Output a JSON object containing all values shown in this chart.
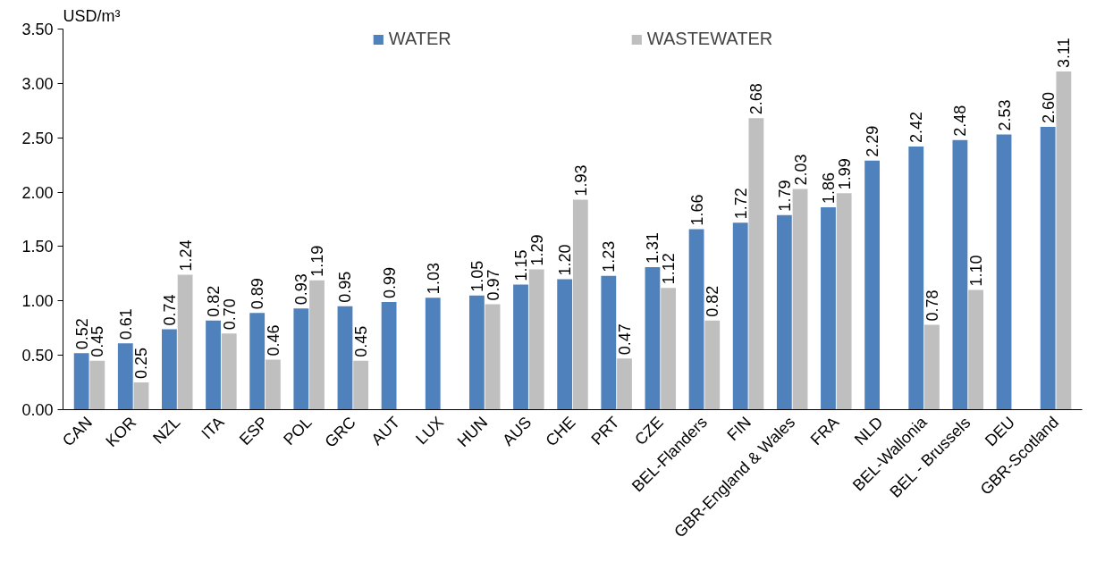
{
  "chart_data": {
    "type": "bar",
    "ylabel": "USD/m³",
    "categories": [
      "CAN",
      "KOR",
      "NZL",
      "ITA",
      "ESP",
      "POL",
      "GRC",
      "AUT",
      "LUX",
      "HUN",
      "AUS",
      "CHE",
      "PRT",
      "CZE",
      "BEL-Flanders",
      "FIN",
      "GBR-England & Wales",
      "FRA",
      "NLD",
      "BEL-Wallonia",
      "BEL - Brussels",
      "DEU",
      "GBR-Scotland"
    ],
    "series": [
      {
        "name": "WATER",
        "color": "#4f81bd",
        "values": [
          0.52,
          0.61,
          0.74,
          0.82,
          0.89,
          0.93,
          0.95,
          0.99,
          1.03,
          1.05,
          1.15,
          1.2,
          1.23,
          1.31,
          1.66,
          1.72,
          1.79,
          1.86,
          2.29,
          2.42,
          2.48,
          2.53,
          2.6
        ],
        "value_labels": [
          "0.52",
          "0.61",
          "0.74",
          "0.82",
          "0.89",
          "0.93",
          "0.95",
          "0.99",
          "1.03",
          "1.05",
          "1.15",
          "1.20",
          "1.23",
          "1.31",
          "1.66",
          "1.72",
          "1.79",
          "1.86",
          "2.29",
          "2.42",
          "2.48",
          "2.53",
          "2.60"
        ]
      },
      {
        "name": "WASTEWATER",
        "color": "#bfbfbf",
        "values": [
          0.45,
          0.25,
          1.24,
          0.7,
          0.46,
          1.19,
          0.45,
          null,
          null,
          0.97,
          1.29,
          1.93,
          0.47,
          1.12,
          0.82,
          2.68,
          2.03,
          1.99,
          null,
          0.78,
          1.1,
          null,
          3.11
        ],
        "value_labels": [
          "0.45",
          "0.25",
          "1.24",
          "0.70",
          "0.46",
          "1.19",
          "0.45",
          null,
          null,
          "0.97",
          "1.29",
          "1.93",
          "0.47",
          "1.12",
          "0.82",
          "2.68",
          "2.03",
          "1.99",
          null,
          "0.78",
          "1.10",
          null,
          "3.11"
        ]
      }
    ],
    "ylim": [
      0,
      3.5
    ],
    "yticks": [
      {
        "value": 0,
        "label": "0.00"
      },
      {
        "value": 0.5,
        "label": "0.50"
      },
      {
        "value": 1,
        "label": "1.00"
      },
      {
        "value": 1.5,
        "label": "1.50"
      },
      {
        "value": 2,
        "label": "2.00"
      },
      {
        "value": 2.5,
        "label": "2.50"
      },
      {
        "value": 3,
        "label": "3.00"
      },
      {
        "value": 3.5,
        "label": "3.50"
      }
    ],
    "legend": "top",
    "grid": false
  }
}
